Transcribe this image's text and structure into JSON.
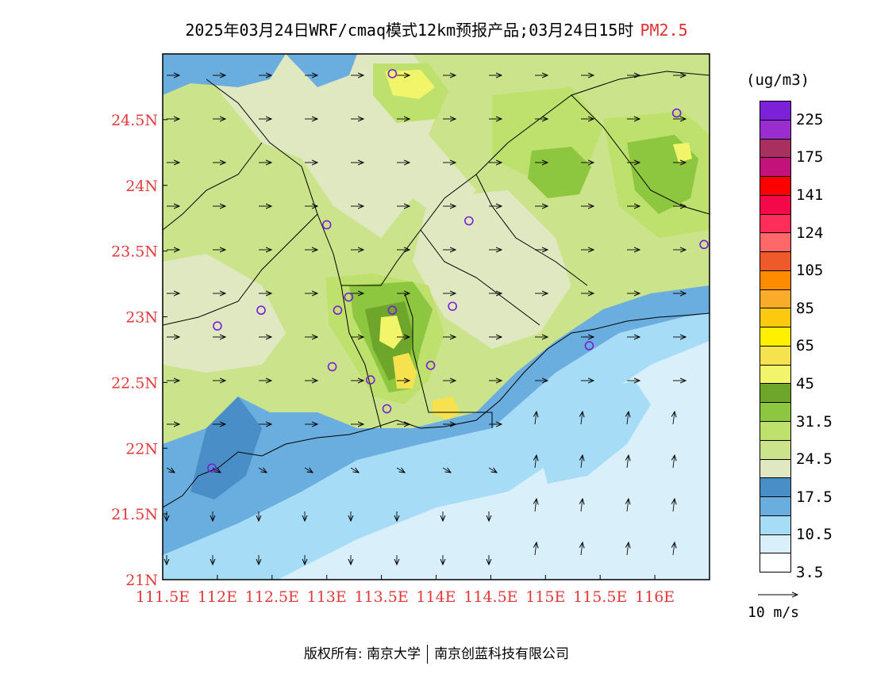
{
  "title": {
    "main": "2025年03月24日WRF/cmaq模式12km预报产品;03月24日15时",
    "product": "PM2.5"
  },
  "colors": {
    "tick_label": "#e23a3a",
    "title_product": "#e03030",
    "station_marker": "#7a1fd6"
  },
  "axes": {
    "x_ticks": [
      "111.5E",
      "112E",
      "112.5E",
      "113E",
      "113.5E",
      "114E",
      "114.5E",
      "115E",
      "115.5E",
      "116E"
    ],
    "y_ticks": [
      "21N",
      "21.5N",
      "22N",
      "22.5N",
      "23N",
      "23.5N",
      "24N",
      "24.5N"
    ],
    "lon_range": [
      111.5,
      116.5
    ],
    "lat_range": [
      21.0,
      25.0
    ]
  },
  "legend": {
    "unit": "(ug/m3)",
    "swatches": [
      "#7b22d9",
      "#9a2dcf",
      "#a8305f",
      "#c3127a",
      "#ff0000",
      "#f4084a",
      "#fe2d5a",
      "#ff6868",
      "#ef5a2a",
      "#ff8c00",
      "#fbab2a",
      "#fdc90f",
      "#fff000",
      "#f5e24e",
      "#f2f56a",
      "#6ea62c",
      "#8dc63f",
      "#bee06d",
      "#cbe38a",
      "#dfe8c0",
      "#4a8ec7",
      "#6aaedf",
      "#a7dcf7",
      "#d9f0fb",
      "#ffffff"
    ],
    "labels": [
      "225",
      "175",
      "141",
      "124",
      "105",
      "85",
      "65",
      "45",
      "31.5",
      "24.5",
      "17.5",
      "10.5",
      "3.5"
    ]
  },
  "wind_reference": "10 m/s",
  "footer": {
    "left": "版权所有: 南京大学",
    "right": "南京创蓝科技有限公司"
  },
  "stations": [
    {
      "lon": 113.6,
      "lat": 24.85
    },
    {
      "lon": 113.0,
      "lat": 23.7
    },
    {
      "lon": 114.3,
      "lat": 23.73
    },
    {
      "lon": 116.2,
      "lat": 24.55
    },
    {
      "lon": 116.45,
      "lat": 23.55
    },
    {
      "lon": 113.2,
      "lat": 23.15
    },
    {
      "lon": 113.1,
      "lat": 23.05
    },
    {
      "lon": 113.6,
      "lat": 23.05
    },
    {
      "lon": 114.15,
      "lat": 23.08
    },
    {
      "lon": 112.4,
      "lat": 23.05
    },
    {
      "lon": 112.0,
      "lat": 22.93
    },
    {
      "lon": 113.05,
      "lat": 22.62
    },
    {
      "lon": 113.4,
      "lat": 22.52
    },
    {
      "lon": 113.95,
      "lat": 22.63
    },
    {
      "lon": 113.55,
      "lat": 22.3
    },
    {
      "lon": 115.4,
      "lat": 22.78
    },
    {
      "lon": 111.95,
      "lat": 21.85
    }
  ]
}
